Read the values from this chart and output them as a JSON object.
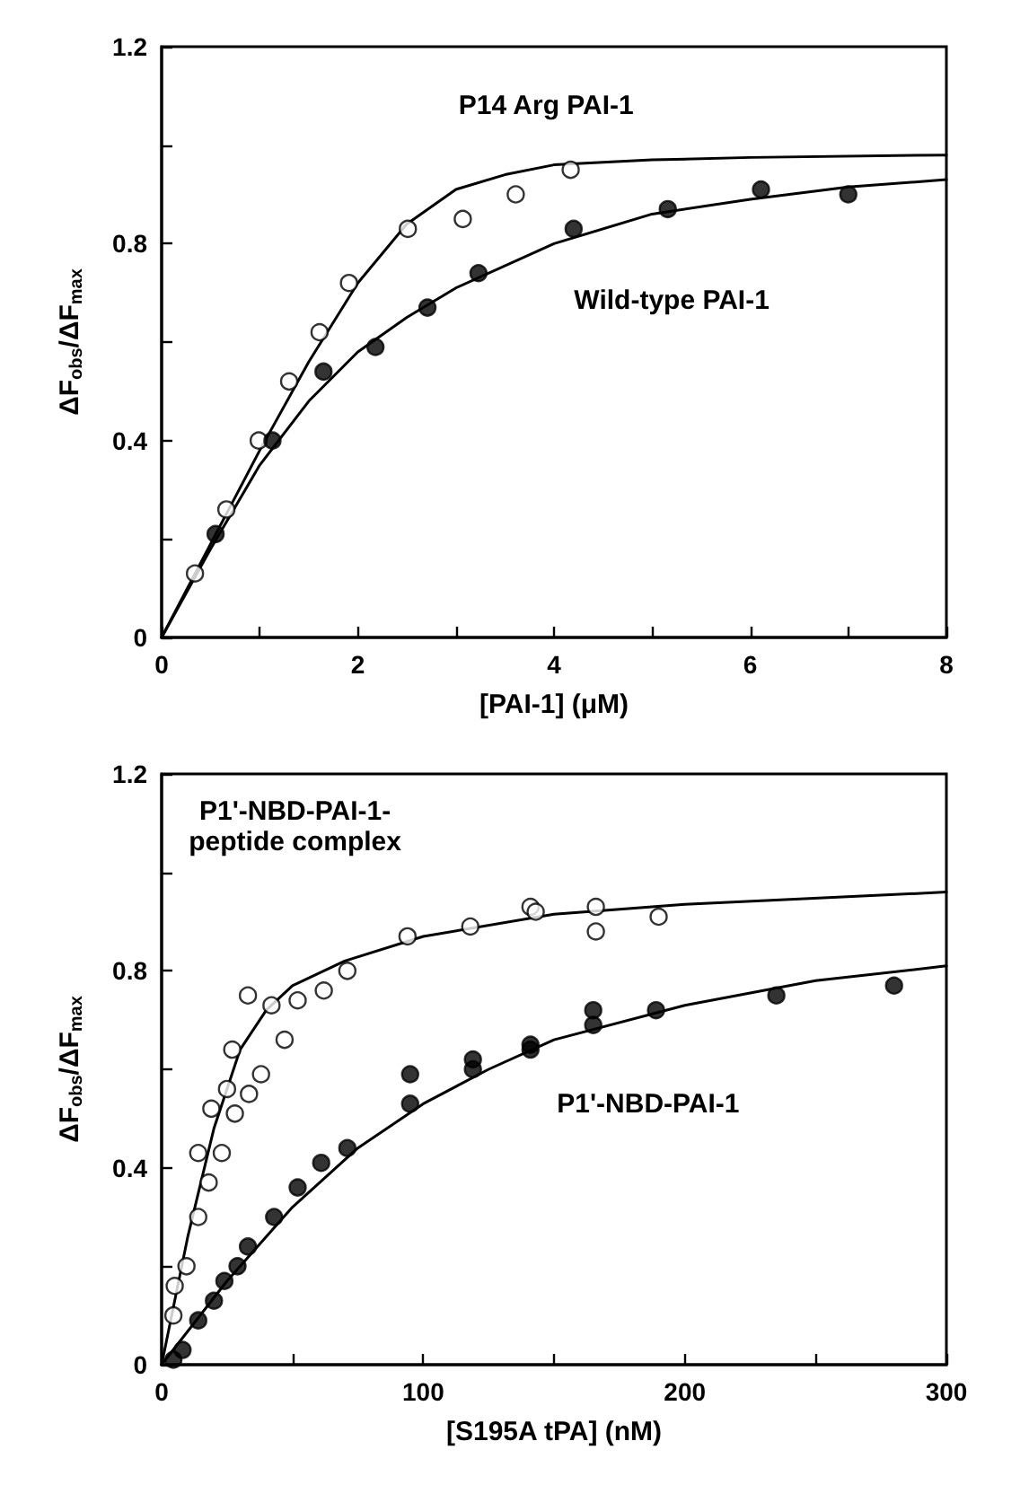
{
  "chart_data": [
    {
      "type": "scatter",
      "xlabel": "[PAI-1] (μM)",
      "ylabel": "ΔF$_{obs}$/ΔF$_{max}$",
      "xlim": [
        0,
        8
      ],
      "ylim": [
        0,
        1.2
      ],
      "xticks": [
        0,
        {
          "value": 1,
          "label": null
        },
        2,
        {
          "value": 3,
          "label": null
        },
        4,
        {
          "value": 5,
          "label": null
        },
        6,
        {
          "value": 7,
          "label": null
        },
        8
      ],
      "yticks": [
        0,
        {
          "value": 0.2,
          "label": null
        },
        0.4,
        {
          "value": 0.6,
          "label": null
        },
        0.8,
        {
          "value": 1,
          "label": null
        },
        1.2
      ],
      "marker": "circle",
      "annotations": [
        "P14 Arg PAI-1",
        "Wild-type PAI-1"
      ],
      "series": [
        {
          "color": "#ffffff",
          "x": [
            0.34,
            0.66,
            0.99,
            1.3,
            1.61,
            1.91,
            2.51,
            3.07,
            3.61,
            4.17
          ],
          "values": [
            0.13,
            0.26,
            0.4,
            0.52,
            0.62,
            0.72,
            0.83,
            0.85,
            0.9,
            0.95
          ]
        },
        {
          "color": "#000000",
          "x": [
            0.55,
            1.13,
            1.65,
            2.18,
            2.71,
            3.23,
            4.2,
            5.16,
            6.11,
            7.0
          ],
          "values": [
            0.21,
            0.4,
            0.54,
            0.59,
            0.67,
            0.74,
            0.83,
            0.87,
            0.91,
            0.9
          ]
        },
        {
          "type": "line",
          "marker": "none",
          "color": "#000000",
          "x": [
            0,
            0.5,
            1,
            1.5,
            2,
            2.5,
            3,
            3.5,
            4,
            5,
            6,
            8
          ],
          "values": [
            0,
            0.19,
            0.38,
            0.56,
            0.72,
            0.84,
            0.91,
            0.94,
            0.96,
            0.97,
            0.975,
            0.98
          ]
        },
        {
          "type": "line",
          "marker": "none",
          "color": "#000000",
          "x": [
            0,
            0.5,
            1,
            1.5,
            2,
            2.5,
            3,
            4,
            5,
            6,
            7,
            8
          ],
          "values": [
            0,
            0.18,
            0.35,
            0.48,
            0.58,
            0.65,
            0.71,
            0.8,
            0.86,
            0.89,
            0.915,
            0.93
          ]
        }
      ]
    },
    {
      "type": "scatter",
      "xlabel": "[S195A tPA] (nM)",
      "ylabel": "ΔF$_{obs}$/ΔF$_{max}$",
      "xlim": [
        0,
        300
      ],
      "ylim": [
        0,
        1.2
      ],
      "xticks": [
        0,
        {
          "value": 50,
          "label": null
        },
        100,
        {
          "value": 150,
          "label": null
        },
        200,
        {
          "value": 250,
          "label": null
        },
        300
      ],
      "yticks": [
        0,
        {
          "value": 0.2,
          "label": null
        },
        0.4,
        {
          "value": 0.6,
          "label": null
        },
        0.8,
        {
          "value": 1,
          "label": null
        },
        1.2
      ],
      "marker": "circle",
      "annotations": [
        "P1'-NBD-PAI-1-\npeptide complex",
        "P1'-NBD-PAI-1"
      ],
      "series": [
        {
          "color": "#ffffff",
          "x": [
            4.5,
            5,
            9.5,
            14,
            18,
            14,
            23,
            19,
            25,
            33.4,
            28,
            38,
            27,
            47,
            33,
            42,
            52,
            62,
            71,
            94,
            118,
            141,
            143,
            166,
            166,
            190
          ],
          "values": [
            0.1,
            0.16,
            0.2,
            0.3,
            0.37,
            0.43,
            0.43,
            0.52,
            0.56,
            0.55,
            0.51,
            0.59,
            0.64,
            0.66,
            0.75,
            0.73,
            0.74,
            0.76,
            0.8,
            0.87,
            0.89,
            0.93,
            0.92,
            0.93,
            0.88,
            0.91
          ]
        },
        {
          "color": "#000000",
          "x": [
            4.5,
            8,
            14,
            20,
            24,
            29,
            33,
            43,
            52,
            61,
            71,
            95,
            95,
            119,
            119,
            141,
            141,
            165,
            165,
            189,
            235,
            280
          ],
          "values": [
            0.01,
            0.03,
            0.09,
            0.13,
            0.17,
            0.2,
            0.24,
            0.3,
            0.36,
            0.41,
            0.44,
            0.59,
            0.53,
            0.62,
            0.6,
            0.65,
            0.64,
            0.72,
            0.69,
            0.72,
            0.75,
            0.77
          ]
        },
        {
          "type": "line",
          "marker": "none",
          "color": "#000000",
          "x": [
            0,
            5,
            10,
            20,
            30,
            40,
            50,
            70,
            100,
            150,
            200,
            300
          ],
          "values": [
            0,
            0.13,
            0.26,
            0.48,
            0.64,
            0.72,
            0.77,
            0.82,
            0.87,
            0.915,
            0.935,
            0.96
          ]
        },
        {
          "type": "line",
          "marker": "none",
          "color": "#000000",
          "x": [
            0,
            25,
            50,
            75,
            100,
            125,
            150,
            200,
            250,
            300
          ],
          "values": [
            0,
            0.17,
            0.32,
            0.44,
            0.53,
            0.6,
            0.66,
            0.73,
            0.78,
            0.81
          ]
        }
      ]
    }
  ]
}
